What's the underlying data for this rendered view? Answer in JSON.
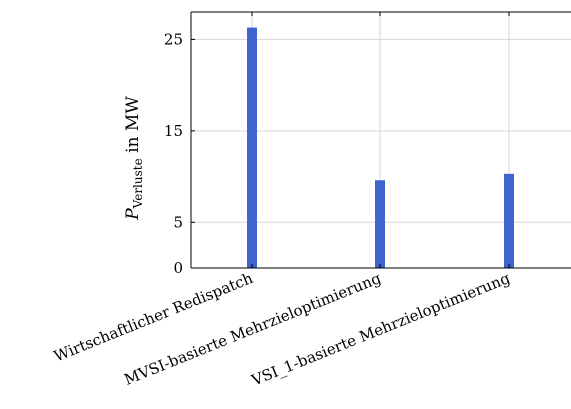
{
  "chart_data": {
    "type": "bar",
    "categories": [
      "Wirtschaftlicher Redispatch",
      "MVSI-basierte Mehrzieloptimierung",
      "VSI_1-basierte Mehrzieloptimierung"
    ],
    "values": [
      26.3,
      9.6,
      10.3
    ],
    "ylabel": {
      "symbol": "P",
      "subscript": "Verluste",
      "unit_text": " in MW"
    },
    "yticks": [
      0,
      5,
      15,
      25
    ],
    "ylim": [
      0,
      28
    ],
    "grid": true,
    "bar_color": "#3f63cf",
    "legend": "none"
  }
}
